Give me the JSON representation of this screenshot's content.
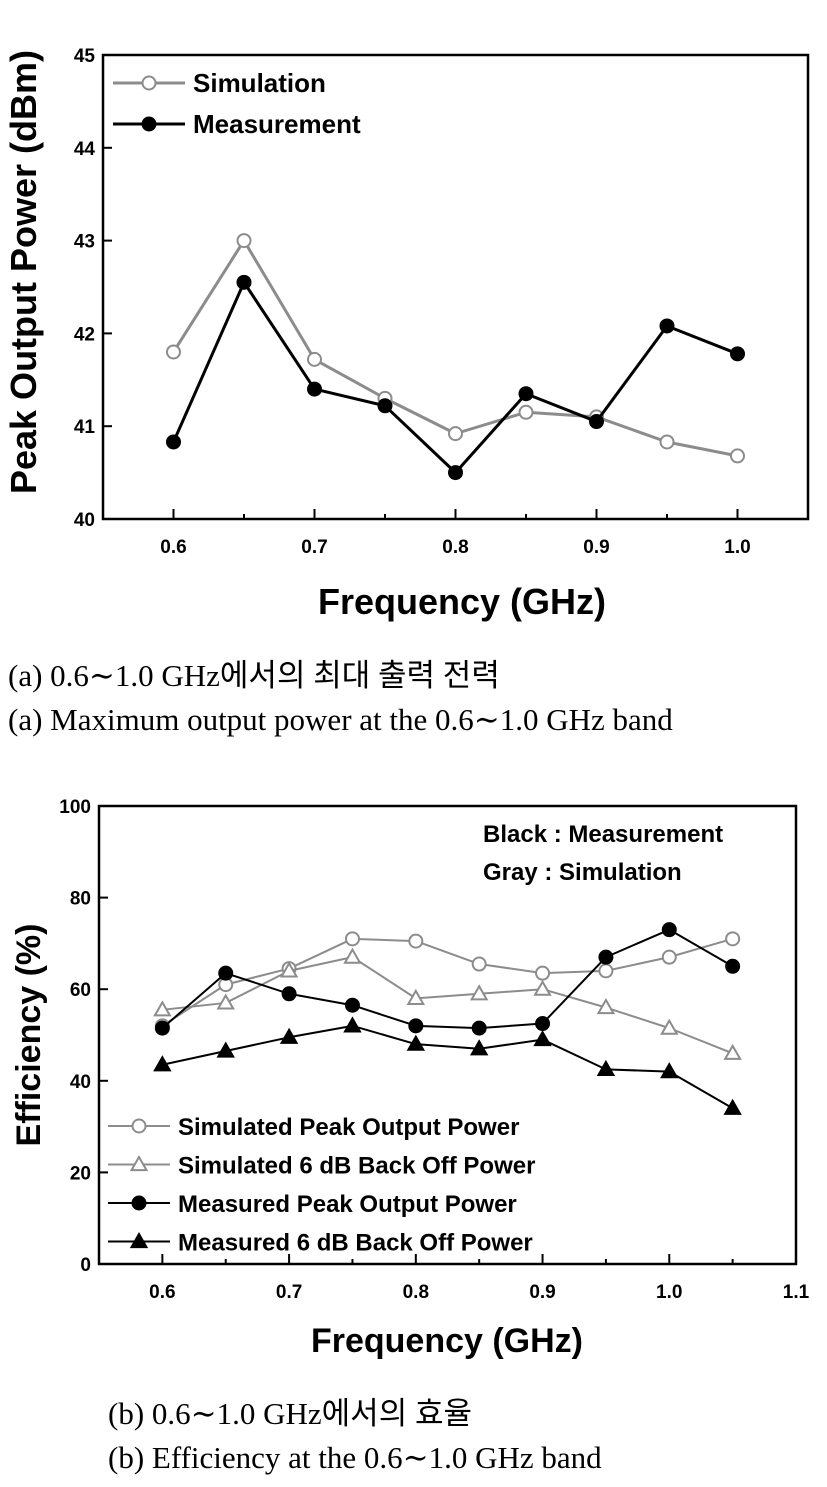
{
  "chart_data": [
    {
      "type": "line",
      "title": "",
      "xlabel": "Frequency (GHz)",
      "ylabel": "Peak Output Power (dBm)",
      "xlim": [
        0.55,
        1.05
      ],
      "ylim": [
        40,
        45
      ],
      "xticks": [
        "0.6",
        "0.7",
        "0.8",
        "0.9",
        "1.0"
      ],
      "yticks": [
        "40",
        "41",
        "42",
        "43",
        "44",
        "45"
      ],
      "legend_position": "top-left",
      "x": [
        0.6,
        0.65,
        0.7,
        0.75,
        0.8,
        0.85,
        0.9,
        0.95,
        1.0
      ],
      "series": [
        {
          "name": "Simulation",
          "color": "#8c8c8c",
          "marker": "open-circle",
          "values": [
            41.8,
            43.0,
            41.72,
            41.3,
            40.92,
            41.15,
            41.1,
            40.83,
            40.68
          ]
        },
        {
          "name": "Measurement",
          "color": "#000000",
          "marker": "filled-circle",
          "values": [
            40.83,
            42.55,
            41.4,
            41.22,
            40.5,
            41.35,
            41.05,
            42.08,
            41.78
          ]
        }
      ]
    },
    {
      "type": "line",
      "title": "",
      "xlabel": "Frequency (GHz)",
      "ylabel": "Efficiency (%)",
      "xlim": [
        0.55,
        1.1
      ],
      "ylim": [
        0,
        100
      ],
      "xticks": [
        "0.6",
        "0.7",
        "0.8",
        "0.9",
        "1.0",
        "1.1"
      ],
      "yticks": [
        "0",
        "20",
        "40",
        "60",
        "80",
        "100"
      ],
      "legend_position": "bottom-left",
      "annotations": [
        "Black : Measurement",
        "Gray : Simulation"
      ],
      "x": [
        0.6,
        0.65,
        0.7,
        0.75,
        0.8,
        0.85,
        0.9,
        0.95,
        1.0,
        1.05
      ],
      "series": [
        {
          "name": "Simulated Peak Output Power",
          "color": "#8c8c8c",
          "marker": "open-circle",
          "values": [
            52,
            61,
            64.5,
            71,
            70.5,
            65.5,
            63.5,
            64,
            67,
            71
          ]
        },
        {
          "name": "Simulated 6 dB Back Off Power",
          "color": "#8c8c8c",
          "marker": "open-triangle",
          "values": [
            55.5,
            57,
            64,
            67,
            58,
            59,
            60,
            56,
            51.5,
            46
          ]
        },
        {
          "name": "Measured Peak Output Power",
          "color": "#000000",
          "marker": "filled-circle",
          "values": [
            51.5,
            63.5,
            59,
            56.5,
            52,
            51.5,
            52.5,
            67,
            73,
            65
          ]
        },
        {
          "name": "Measured 6 dB Back Off Power",
          "color": "#000000",
          "marker": "filled-triangle",
          "values": [
            43.5,
            46.5,
            49.5,
            52,
            48,
            47,
            49,
            42.5,
            42,
            34
          ]
        }
      ]
    }
  ],
  "captions": {
    "a_korean": "(a) 0.6∼1.0 GHz에서의 최대 출력 전력",
    "a_english": "(a) Maximum output power at the 0.6∼1.0 GHz band",
    "b_korean": "(b) 0.6∼1.0 GHz에서의 효율",
    "b_english": "(b) Efficiency at the 0.6∼1.0 GHz band"
  }
}
